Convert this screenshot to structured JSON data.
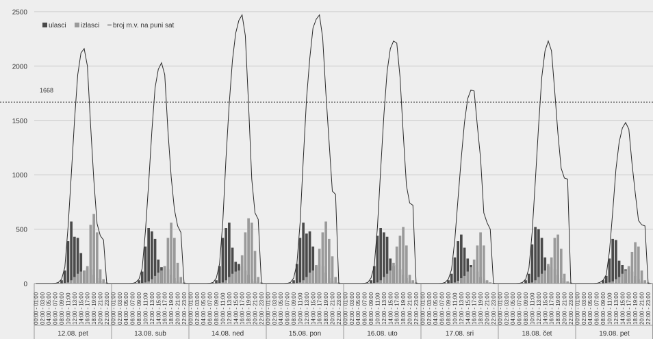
{
  "chart_data": {
    "type": "bar",
    "title": "",
    "xlabel": "",
    "ylabel": "",
    "ylim": [
      0,
      2500
    ],
    "yticks": [
      0,
      500,
      1000,
      1500,
      2000,
      2500
    ],
    "grid": "horizontal",
    "legend_position": "top-left",
    "legend": {
      "ulasci": "ulasci",
      "izlasci": "izlasci",
      "line": "broj m.v. na puni sat"
    },
    "threshold": {
      "value": 1668,
      "label": "1668",
      "style": "dotted"
    },
    "hour_labels": [
      "00:00 - 01:00",
      "02:00 - 03:00",
      "04:00 - 05:00",
      "06:00 - 07:00",
      "08:00 - 09:00",
      "10:00 - 11:00",
      "12:00 - 13:00",
      "14:00 - 15:00",
      "16:00 - 17:00",
      "18:00 - 19:00",
      "20:00 - 21:00",
      "22:00 - 23:00"
    ],
    "colors": {
      "ulasci": "#4a4a4a",
      "izlasci": "#9a9a9a",
      "line": "#2a2a2a",
      "grid": "#c8c8c8",
      "background": "#eeeeee"
    },
    "days": [
      {
        "label": "12.08. pet",
        "ulasci": [
          0,
          0,
          0,
          0,
          0,
          0,
          2,
          5,
          30,
          120,
          390,
          570,
          430,
          420,
          280,
          120,
          140,
          130,
          80,
          50,
          25,
          10,
          5,
          2
        ],
        "izlasci": [
          0,
          0,
          0,
          0,
          0,
          0,
          0,
          1,
          2,
          5,
          10,
          30,
          60,
          90,
          110,
          120,
          160,
          540,
          640,
          470,
          130,
          40,
          10,
          2
        ],
        "line": [
          0,
          0,
          0,
          0,
          0,
          0,
          2,
          10,
          40,
          150,
          520,
          1000,
          1500,
          1920,
          2120,
          2160,
          2000,
          1450,
          950,
          550,
          440,
          400,
          0,
          0
        ]
      },
      {
        "label": "13.08. sub",
        "ulasci": [
          0,
          0,
          0,
          0,
          0,
          0,
          2,
          5,
          30,
          110,
          340,
          510,
          480,
          410,
          220,
          150,
          160,
          130,
          80,
          50,
          20,
          10,
          5,
          2
        ],
        "izlasci": [
          0,
          0,
          0,
          0,
          0,
          0,
          0,
          1,
          2,
          5,
          10,
          20,
          40,
          70,
          100,
          120,
          160,
          420,
          560,
          420,
          190,
          60,
          10,
          2
        ],
        "line": [
          0,
          0,
          0,
          0,
          0,
          0,
          2,
          10,
          40,
          140,
          480,
          920,
          1400,
          1800,
          1970,
          2030,
          1920,
          1400,
          980,
          680,
          530,
          470,
          0,
          0
        ]
      },
      {
        "label": "14.08. ned",
        "ulasci": [
          0,
          0,
          0,
          0,
          0,
          0,
          2,
          5,
          30,
          160,
          420,
          510,
          560,
          330,
          200,
          180,
          160,
          120,
          80,
          40,
          20,
          10,
          5,
          2
        ],
        "izlasci": [
          0,
          0,
          0,
          0,
          0,
          0,
          0,
          1,
          2,
          5,
          10,
          30,
          60,
          90,
          110,
          120,
          260,
          470,
          600,
          560,
          300,
          60,
          10,
          2
        ],
        "line": [
          0,
          0,
          0,
          0,
          0,
          0,
          2,
          10,
          50,
          180,
          560,
          1150,
          1650,
          2050,
          2300,
          2420,
          2470,
          2280,
          1650,
          960,
          650,
          590,
          0,
          0
        ]
      },
      {
        "label": "15.08. pon",
        "ulasci": [
          0,
          0,
          0,
          0,
          0,
          0,
          2,
          5,
          30,
          180,
          420,
          560,
          460,
          480,
          340,
          160,
          180,
          160,
          100,
          50,
          20,
          10,
          5,
          2
        ],
        "izlasci": [
          0,
          0,
          0,
          0,
          0,
          0,
          0,
          1,
          2,
          5,
          10,
          30,
          60,
          100,
          120,
          170,
          320,
          470,
          570,
          410,
          250,
          60,
          10,
          2
        ],
        "line": [
          0,
          0,
          0,
          0,
          0,
          0,
          2,
          10,
          50,
          180,
          560,
          1150,
          1700,
          2070,
          2350,
          2430,
          2470,
          2260,
          1750,
          1300,
          850,
          820,
          0,
          0
        ]
      },
      {
        "label": "16.08. uto",
        "ulasci": [
          0,
          0,
          0,
          0,
          0,
          0,
          2,
          5,
          30,
          160,
          440,
          510,
          470,
          430,
          230,
          160,
          170,
          130,
          80,
          50,
          20,
          10,
          5,
          2
        ],
        "izlasci": [
          0,
          0,
          0,
          0,
          0,
          0,
          0,
          1,
          2,
          5,
          10,
          30,
          60,
          90,
          120,
          190,
          340,
          440,
          520,
          350,
          80,
          30,
          10,
          2
        ],
        "line": [
          0,
          0,
          0,
          0,
          0,
          0,
          2,
          10,
          50,
          160,
          520,
          1050,
          1550,
          1950,
          2160,
          2230,
          2210,
          1900,
          1380,
          900,
          740,
          720,
          0,
          0
        ]
      },
      {
        "label": "17.08. sri",
        "ulasci": [
          0,
          0,
          0,
          0,
          0,
          0,
          2,
          5,
          30,
          90,
          240,
          390,
          450,
          330,
          230,
          170,
          150,
          110,
          60,
          40,
          20,
          10,
          5,
          2
        ],
        "izlasci": [
          0,
          0,
          0,
          0,
          0,
          0,
          0,
          1,
          2,
          5,
          10,
          25,
          50,
          70,
          110,
          150,
          220,
          350,
          470,
          350,
          30,
          10,
          5,
          2
        ],
        "line": [
          0,
          0,
          0,
          0,
          0,
          0,
          2,
          10,
          40,
          130,
          400,
          780,
          1150,
          1480,
          1700,
          1780,
          1770,
          1450,
          1150,
          650,
          560,
          500,
          0,
          0
        ]
      },
      {
        "label": "18.08. čet",
        "ulasci": [
          0,
          0,
          0,
          0,
          0,
          0,
          2,
          5,
          30,
          90,
          360,
          520,
          500,
          420,
          240,
          160,
          150,
          130,
          80,
          50,
          20,
          10,
          5,
          2
        ],
        "izlasci": [
          0,
          0,
          0,
          0,
          0,
          0,
          0,
          1,
          2,
          5,
          10,
          30,
          60,
          90,
          120,
          180,
          240,
          420,
          450,
          320,
          90,
          20,
          10,
          2
        ],
        "line": [
          0,
          0,
          0,
          0,
          0,
          0,
          2,
          10,
          40,
          140,
          470,
          950,
          1450,
          1900,
          2140,
          2230,
          2140,
          1770,
          1380,
          1060,
          970,
          960,
          0,
          0
        ]
      },
      {
        "label": "19.08. pet",
        "ulasci": [
          0,
          0,
          0,
          0,
          0,
          0,
          2,
          5,
          30,
          70,
          230,
          410,
          400,
          210,
          170,
          130,
          140,
          110,
          70,
          40,
          20,
          10,
          5,
          2
        ],
        "izlasci": [
          0,
          0,
          0,
          0,
          0,
          0,
          0,
          1,
          2,
          5,
          10,
          20,
          40,
          60,
          90,
          120,
          160,
          290,
          380,
          340,
          120,
          30,
          10,
          2
        ],
        "line": [
          0,
          0,
          0,
          0,
          0,
          0,
          2,
          10,
          30,
          80,
          300,
          660,
          1050,
          1300,
          1430,
          1480,
          1420,
          1100,
          830,
          580,
          540,
          530,
          0,
          0
        ]
      }
    ]
  }
}
